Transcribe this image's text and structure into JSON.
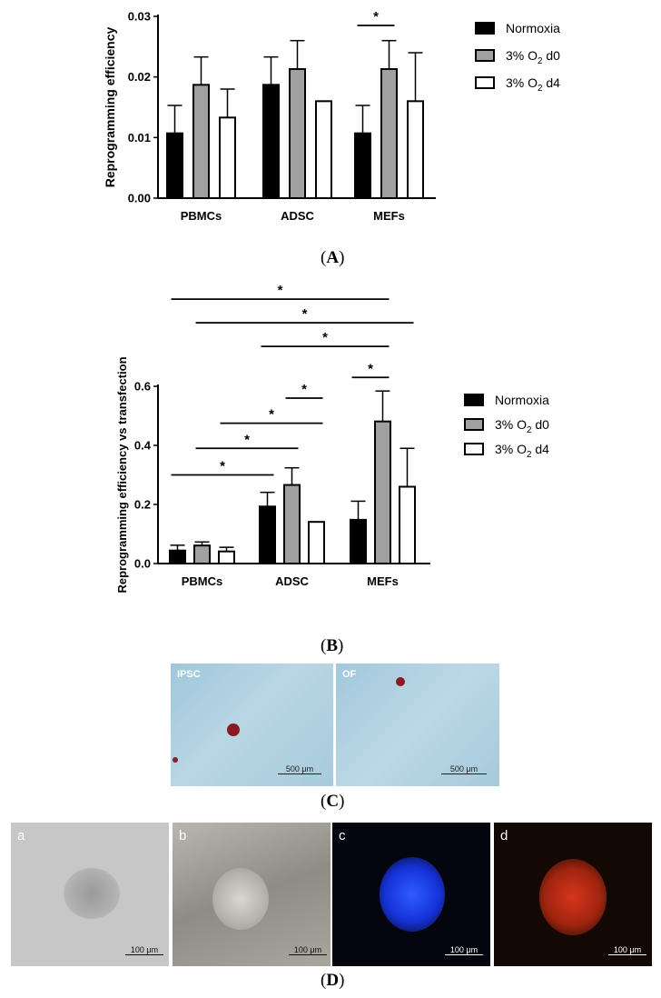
{
  "chart_data": [
    {
      "type": "bar",
      "panel_label": "A",
      "ylabel": "Reprogramming efficiency",
      "ylim": [
        0,
        0.03
      ],
      "yticks": [
        "0.00",
        "0.01",
        "0.02",
        "0.03"
      ],
      "ytick_values": [
        0,
        0.01,
        0.02,
        0.03
      ],
      "categories": [
        "PBMCs",
        "ADSC",
        "MEFs"
      ],
      "legend_placement": "top-right",
      "series": [
        {
          "name": "Normoxia",
          "values": [
            0.0107,
            0.0187,
            0.0107
          ],
          "errors": [
            0.0046,
            0.0046,
            0.0046
          ]
        },
        {
          "name": "3% O2 d0",
          "values": [
            0.0187,
            0.0213,
            0.0213
          ],
          "errors": [
            0.0046,
            0.0047,
            0.0047
          ]
        },
        {
          "name": "3% O2 d4",
          "values": [
            0.0133,
            0.016,
            0.016
          ],
          "errors": [
            0.0047,
            0.0,
            0.008
          ]
        }
      ],
      "significance": [
        {
          "label": "*",
          "from": [
            2,
            0
          ],
          "to": [
            2,
            1
          ],
          "y": 0.0285
        }
      ]
    },
    {
      "type": "bar",
      "panel_label": "B",
      "ylabel": "Reprogramming efficiency vs transfection",
      "ylim": [
        0,
        0.6
      ],
      "yticks": [
        "0.0",
        "0.2",
        "0.4",
        "0.6"
      ],
      "ytick_values": [
        0,
        0.2,
        0.4,
        0.6
      ],
      "categories": [
        "PBMCs",
        "ADSC",
        "MEFs"
      ],
      "legend_placement": "right",
      "series": [
        {
          "name": "Normoxia",
          "values": [
            0.044,
            0.193,
            0.148
          ],
          "errors": [
            0.018,
            0.048,
            0.063
          ]
        },
        {
          "name": "3% O2 d0",
          "values": [
            0.061,
            0.266,
            0.481
          ],
          "errors": [
            0.012,
            0.058,
            0.103
          ]
        },
        {
          "name": "3% O2 d4",
          "values": [
            0.041,
            0.141,
            0.26
          ],
          "errors": [
            0.014,
            0.0,
            0.13
          ]
        }
      ],
      "significance": [
        {
          "label": "*",
          "from": [
            0,
            0
          ],
          "to": [
            1,
            0
          ],
          "y": 0.3
        },
        {
          "label": "*",
          "from": [
            0,
            1
          ],
          "to": [
            1,
            1
          ],
          "y": 0.39
        },
        {
          "label": "*",
          "from": [
            0,
            2
          ],
          "to": [
            1,
            2
          ],
          "y": 0.475
        },
        {
          "label": "*",
          "from": [
            1,
            1
          ],
          "to": [
            1,
            2
          ],
          "y": 0.56
        },
        {
          "label": "*",
          "from": [
            2,
            0
          ],
          "to": [
            2,
            1
          ],
          "y": 0.63
        },
        {
          "label": "*",
          "from": [
            1,
            0
          ],
          "to": [
            2,
            1
          ],
          "y": 0.735
        },
        {
          "label": "*",
          "from": [
            0,
            1
          ],
          "to": [
            2,
            2
          ],
          "y": 0.815
        },
        {
          "label": "*",
          "from": [
            0,
            0
          ],
          "to": [
            2,
            1
          ],
          "y": 0.895
        }
      ]
    }
  ],
  "colors": {
    "normoxia": "#000000",
    "o2_d0": "#a0a0a0",
    "o2_d4": "#ffffff"
  },
  "panel_c": {
    "label": "C",
    "images": [
      {
        "tag": "IPSC",
        "scale": "500 μm"
      },
      {
        "tag": "OF",
        "scale": "500 μm"
      }
    ]
  },
  "panel_d": {
    "label": "D",
    "images": [
      {
        "tag": "a",
        "scale": "100 μm"
      },
      {
        "tag": "b",
        "scale": "100 μm"
      },
      {
        "tag": "c",
        "scale": "100 μm"
      },
      {
        "tag": "d",
        "scale": "100 μm"
      }
    ]
  }
}
